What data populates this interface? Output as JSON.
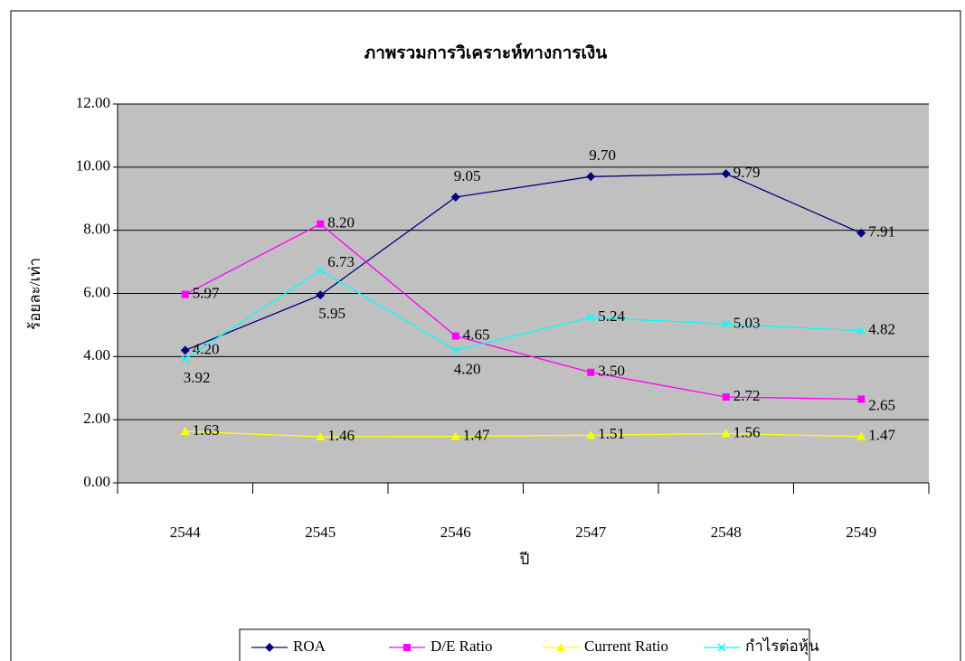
{
  "chart_data": {
    "type": "line",
    "title": "ภาพรวมการวิเคราะห์ทางการเงิน",
    "x_label": "ปี",
    "y_label": "ร้อยละ/เท่า",
    "categories": [
      "2544",
      "2545",
      "2546",
      "2547",
      "2548",
      "2549"
    ],
    "ylim": [
      0,
      12
    ],
    "yticks": [
      {
        "value": 0,
        "label": "0.00"
      },
      {
        "value": 2,
        "label": "2.00"
      },
      {
        "value": 4,
        "label": "4.00"
      },
      {
        "value": 6,
        "label": "6.00"
      },
      {
        "value": 8,
        "label": "8.00"
      },
      {
        "value": 10,
        "label": "10.00"
      },
      {
        "value": 12,
        "label": "12.00"
      }
    ],
    "grid": true,
    "legend": "bottom",
    "series": [
      {
        "name": "ROA",
        "color": "#000080",
        "marker": "diamond",
        "values": [
          4.2,
          5.95,
          9.05,
          9.7,
          9.79,
          7.91
        ],
        "value_labels": [
          "4.20",
          "5.95",
          "9.05",
          "9.70",
          "9.79",
          "7.91"
        ]
      },
      {
        "name": "D/E Ratio",
        "color": "#ff00ff",
        "marker": "square",
        "values": [
          5.97,
          8.2,
          4.65,
          3.5,
          2.72,
          2.65
        ],
        "value_labels": [
          "5.97",
          "8.20",
          "4.65",
          "3.50",
          "2.72",
          "2.65"
        ]
      },
      {
        "name": "Current Ratio",
        "color": "#ffff00",
        "marker": "triangle",
        "values": [
          1.63,
          1.46,
          1.47,
          1.51,
          1.56,
          1.47
        ],
        "value_labels": [
          "1.63",
          "1.46",
          "1.47",
          "1.51",
          "1.56",
          "1.47"
        ]
      },
      {
        "name": "กำไรต่อหุ้น",
        "color": "#00ffff",
        "marker": "x",
        "values": [
          3.92,
          6.73,
          4.2,
          5.24,
          5.03,
          4.82
        ],
        "value_labels": [
          "3.92",
          "6.73",
          "4.20",
          "5.24",
          "5.03",
          "4.82"
        ]
      }
    ]
  }
}
